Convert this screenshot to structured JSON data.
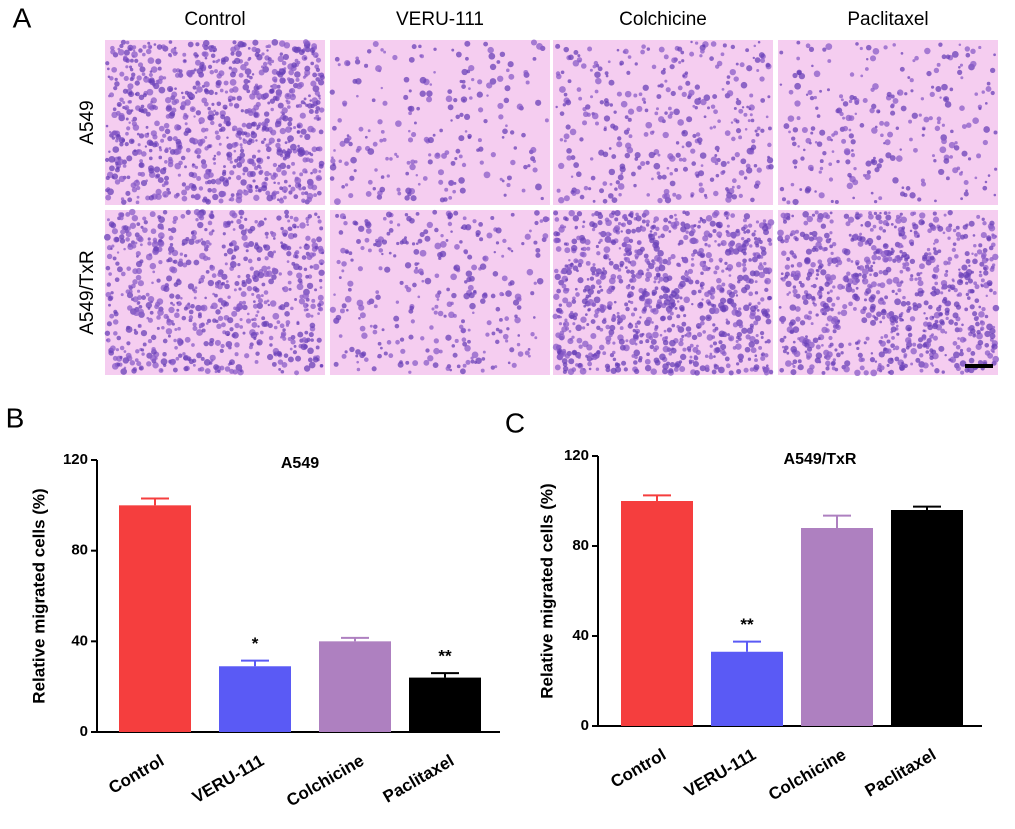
{
  "panel_a": {
    "label": "A",
    "columns": [
      "Control",
      "VERU-111",
      "Colchicine",
      "Paclitaxel"
    ],
    "rows": [
      "A549",
      "A549/TxR"
    ]
  },
  "chart_data": [
    {
      "type": "bar",
      "panel_label": "B",
      "title": "A549",
      "y_label": "Relative migrated cells (%)",
      "categories": [
        "Control",
        "VERU-111",
        "Colchicine",
        "Paclitaxel"
      ],
      "values": [
        100,
        29,
        40,
        24
      ],
      "errors": [
        3,
        2.5,
        1.5,
        2
      ],
      "colors": [
        "#f53e3e",
        "#5a5af5",
        "#ae80c0",
        "#000000"
      ],
      "ylim": [
        0,
        120
      ],
      "yticks": [
        0,
        40,
        80,
        120
      ],
      "annotations": [
        {
          "x": "VERU-111",
          "text": "*"
        },
        {
          "x": "Paclitaxel",
          "text": "**"
        }
      ]
    },
    {
      "type": "bar",
      "panel_label": "C",
      "title": "A549/TxR",
      "y_label": "Relative migrated cells (%)",
      "categories": [
        "Control",
        "VERU-111",
        "Colchicine",
        "Paclitaxel"
      ],
      "values": [
        100,
        33,
        88,
        96
      ],
      "errors": [
        2.5,
        4.5,
        5.5,
        1.5
      ],
      "colors": [
        "#f53e3e",
        "#5a5af5",
        "#ae80c0",
        "#000000"
      ],
      "ylim": [
        0,
        120
      ],
      "yticks": [
        0,
        40,
        80,
        120
      ],
      "annotations": [
        {
          "x": "VERU-111",
          "text": "**"
        }
      ]
    }
  ]
}
